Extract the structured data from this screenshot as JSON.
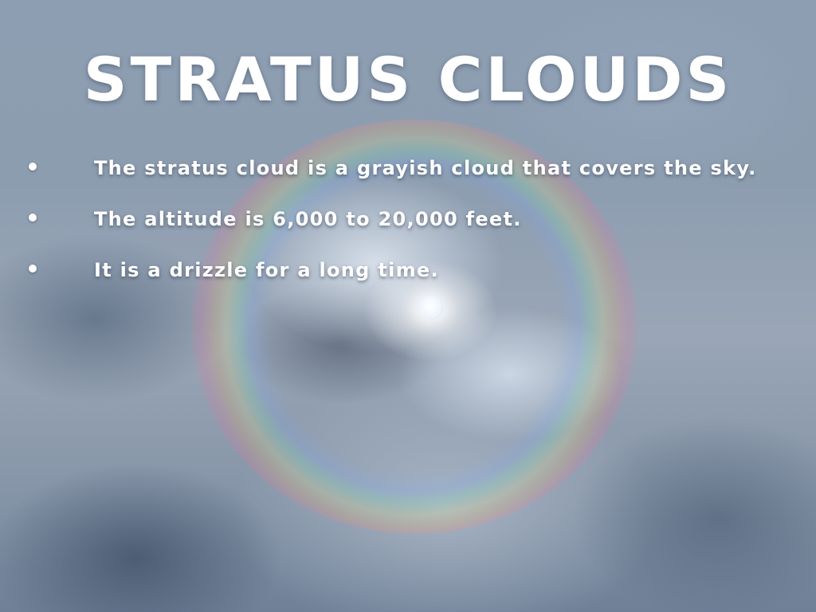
{
  "slide": {
    "title": "STRATUS CLOUDS",
    "bullets": [
      "The stratus cloud is a grayish cloud that covers the sky.",
      "The altitude is 6,000 to 20,000 feet.",
      "It is a drizzle for a long time."
    ],
    "background_image": "sky-with-clouds-halo-and-sun",
    "colors": {
      "text": "#ffffff",
      "sky": "#8d9db0"
    }
  }
}
